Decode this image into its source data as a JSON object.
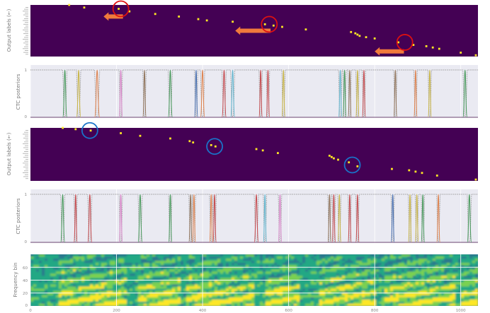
{
  "chart_data": [
    {
      "type": "scatter",
      "panel": "alignment-1",
      "ylabel": "Output labels (←)",
      "xlim": [
        0,
        1040
      ],
      "ylim": [
        0,
        40
      ],
      "background": "#440154",
      "marker_color": "#fde725",
      "points": [
        {
          "x": 90,
          "y": 40
        },
        {
          "x": 125,
          "y": 38
        },
        {
          "x": 205,
          "y": 37
        },
        {
          "x": 230,
          "y": 35
        },
        {
          "x": 290,
          "y": 33
        },
        {
          "x": 345,
          "y": 31
        },
        {
          "x": 390,
          "y": 29
        },
        {
          "x": 410,
          "y": 28
        },
        {
          "x": 470,
          "y": 27
        },
        {
          "x": 545,
          "y": 25
        },
        {
          "x": 565,
          "y": 24
        },
        {
          "x": 585,
          "y": 23
        },
        {
          "x": 640,
          "y": 21
        },
        {
          "x": 745,
          "y": 19
        },
        {
          "x": 755,
          "y": 18
        },
        {
          "x": 760,
          "y": 17
        },
        {
          "x": 765,
          "y": 16
        },
        {
          "x": 780,
          "y": 15
        },
        {
          "x": 800,
          "y": 14
        },
        {
          "x": 855,
          "y": 11
        },
        {
          "x": 890,
          "y": 9
        },
        {
          "x": 920,
          "y": 8
        },
        {
          "x": 935,
          "y": 7
        },
        {
          "x": 950,
          "y": 6
        },
        {
          "x": 1000,
          "y": 3
        },
        {
          "x": 1035,
          "y": 1
        }
      ],
      "circles": [
        {
          "x": 210,
          "y": 37
        },
        {
          "x": 555,
          "y": 25
        },
        {
          "x": 870,
          "y": 11
        }
      ],
      "circle_color": "#dd1111",
      "arrows": [
        {
          "x_from": 215,
          "x_to": 170,
          "y": 31
        },
        {
          "x_from": 558,
          "x_to": 476,
          "y": 20
        },
        {
          "x_from": 868,
          "x_to": 800,
          "y": 4
        }
      ],
      "arrow_color": "#f07a3c"
    },
    {
      "type": "line",
      "panel": "posteriors-1",
      "ylabel": "CTC posteriors",
      "xlim": [
        0,
        1040
      ],
      "ylim": [
        0,
        1
      ],
      "yticks": [
        "0",
        "1"
      ],
      "grid_x": [
        0,
        200,
        400,
        600,
        800,
        1000
      ],
      "background": "#eaeaf2",
      "blank_color": "#999999",
      "peaks": [
        {
          "x": 80,
          "w": 10,
          "c": "#4c9a5f"
        },
        {
          "x": 112,
          "w": 10,
          "c": "#c8b54a"
        },
        {
          "x": 155,
          "w": 12,
          "c": "#dd8452"
        },
        {
          "x": 210,
          "w": 8,
          "c": "#d684c6"
        },
        {
          "x": 265,
          "w": 8,
          "c": "#937860"
        },
        {
          "x": 325,
          "w": 10,
          "c": "#4c9a5f"
        },
        {
          "x": 385,
          "w": 8,
          "c": "#4c72b0"
        },
        {
          "x": 400,
          "w": 10,
          "c": "#dd8452"
        },
        {
          "x": 450,
          "w": 10,
          "c": "#c44e52"
        },
        {
          "x": 470,
          "w": 10,
          "c": "#64b5cd"
        },
        {
          "x": 535,
          "w": 8,
          "c": "#c44e52"
        },
        {
          "x": 552,
          "w": 8,
          "c": "#c44e52"
        },
        {
          "x": 588,
          "w": 8,
          "c": "#c8b54a"
        },
        {
          "x": 720,
          "w": 8,
          "c": "#64b5cd"
        },
        {
          "x": 730,
          "w": 8,
          "c": "#4c9a5f"
        },
        {
          "x": 742,
          "w": 8,
          "c": "#937860"
        },
        {
          "x": 760,
          "w": 8,
          "c": "#c8b54a"
        },
        {
          "x": 775,
          "w": 8,
          "c": "#c44e52"
        },
        {
          "x": 848,
          "w": 8,
          "c": "#937860"
        },
        {
          "x": 895,
          "w": 8,
          "c": "#dd8452"
        },
        {
          "x": 928,
          "w": 8,
          "c": "#c8b54a"
        },
        {
          "x": 1010,
          "w": 10,
          "c": "#4c9a5f"
        }
      ]
    },
    {
      "type": "scatter",
      "panel": "alignment-2",
      "ylabel": "Output labels (←)",
      "xlim": [
        0,
        1040
      ],
      "ylim": [
        0,
        40
      ],
      "background": "#440154",
      "marker_color": "#fde725",
      "points": [
        {
          "x": 75,
          "y": 40
        },
        {
          "x": 105,
          "y": 39
        },
        {
          "x": 140,
          "y": 38
        },
        {
          "x": 210,
          "y": 36
        },
        {
          "x": 255,
          "y": 34
        },
        {
          "x": 325,
          "y": 32
        },
        {
          "x": 370,
          "y": 30
        },
        {
          "x": 378,
          "y": 29
        },
        {
          "x": 420,
          "y": 27
        },
        {
          "x": 430,
          "y": 26
        },
        {
          "x": 525,
          "y": 24
        },
        {
          "x": 540,
          "y": 23
        },
        {
          "x": 575,
          "y": 21
        },
        {
          "x": 695,
          "y": 19
        },
        {
          "x": 700,
          "y": 18
        },
        {
          "x": 705,
          "y": 17
        },
        {
          "x": 715,
          "y": 16
        },
        {
          "x": 740,
          "y": 14
        },
        {
          "x": 760,
          "y": 11
        },
        {
          "x": 840,
          "y": 9
        },
        {
          "x": 880,
          "y": 8
        },
        {
          "x": 895,
          "y": 7
        },
        {
          "x": 910,
          "y": 6
        },
        {
          "x": 945,
          "y": 4
        },
        {
          "x": 1035,
          "y": 1
        }
      ],
      "circles": [
        {
          "x": 138,
          "y": 38
        },
        {
          "x": 428,
          "y": 26
        },
        {
          "x": 748,
          "y": 12
        }
      ],
      "circle_color": "#1a73c8"
    },
    {
      "type": "line",
      "panel": "posteriors-2",
      "ylabel": "CTC posteriors",
      "xlim": [
        0,
        1040
      ],
      "ylim": [
        0,
        1
      ],
      "yticks": [
        "0",
        "1"
      ],
      "grid_x": [
        0,
        200,
        400,
        600,
        800,
        1000
      ],
      "background": "#eaeaf2",
      "blank_color": "#999999",
      "peaks": [
        {
          "x": 75,
          "w": 10,
          "c": "#4c9a5f"
        },
        {
          "x": 105,
          "w": 8,
          "c": "#c44e52"
        },
        {
          "x": 138,
          "w": 10,
          "c": "#c44e52"
        },
        {
          "x": 210,
          "w": 8,
          "c": "#d684c6"
        },
        {
          "x": 255,
          "w": 10,
          "c": "#4c9a5f"
        },
        {
          "x": 325,
          "w": 8,
          "c": "#4c9a5f"
        },
        {
          "x": 372,
          "w": 8,
          "c": "#937860"
        },
        {
          "x": 380,
          "w": 8,
          "c": "#dd8452"
        },
        {
          "x": 420,
          "w": 8,
          "c": "#dd8452"
        },
        {
          "x": 428,
          "w": 8,
          "c": "#c44e52"
        },
        {
          "x": 525,
          "w": 10,
          "c": "#c44e52"
        },
        {
          "x": 545,
          "w": 8,
          "c": "#64b5cd"
        },
        {
          "x": 580,
          "w": 8,
          "c": "#d684c6"
        },
        {
          "x": 695,
          "w": 8,
          "c": "#937860"
        },
        {
          "x": 705,
          "w": 8,
          "c": "#c44e52"
        },
        {
          "x": 718,
          "w": 8,
          "c": "#c8b54a"
        },
        {
          "x": 742,
          "w": 8,
          "c": "#c44e52"
        },
        {
          "x": 760,
          "w": 8,
          "c": "#c44e52"
        },
        {
          "x": 842,
          "w": 8,
          "c": "#4c72b0"
        },
        {
          "x": 882,
          "w": 8,
          "c": "#c8b54a"
        },
        {
          "x": 898,
          "w": 8,
          "c": "#c8b54a"
        },
        {
          "x": 912,
          "w": 8,
          "c": "#4c9a5f"
        },
        {
          "x": 948,
          "w": 8,
          "c": "#dd8452"
        },
        {
          "x": 1020,
          "w": 10,
          "c": "#4c9a5f"
        }
      ]
    },
    {
      "type": "heatmap",
      "panel": "spectrogram",
      "ylabel": "Frequency bin",
      "xlim": [
        0,
        1040
      ],
      "ylim": [
        0,
        80
      ],
      "xticks": [
        "0",
        "200",
        "400",
        "600",
        "800",
        "1000"
      ],
      "yticks": [
        "0",
        "20",
        "40",
        "60"
      ],
      "colormap": [
        "#440154",
        "#2a788e",
        "#22a884",
        "#7ad151",
        "#fde725"
      ]
    }
  ]
}
